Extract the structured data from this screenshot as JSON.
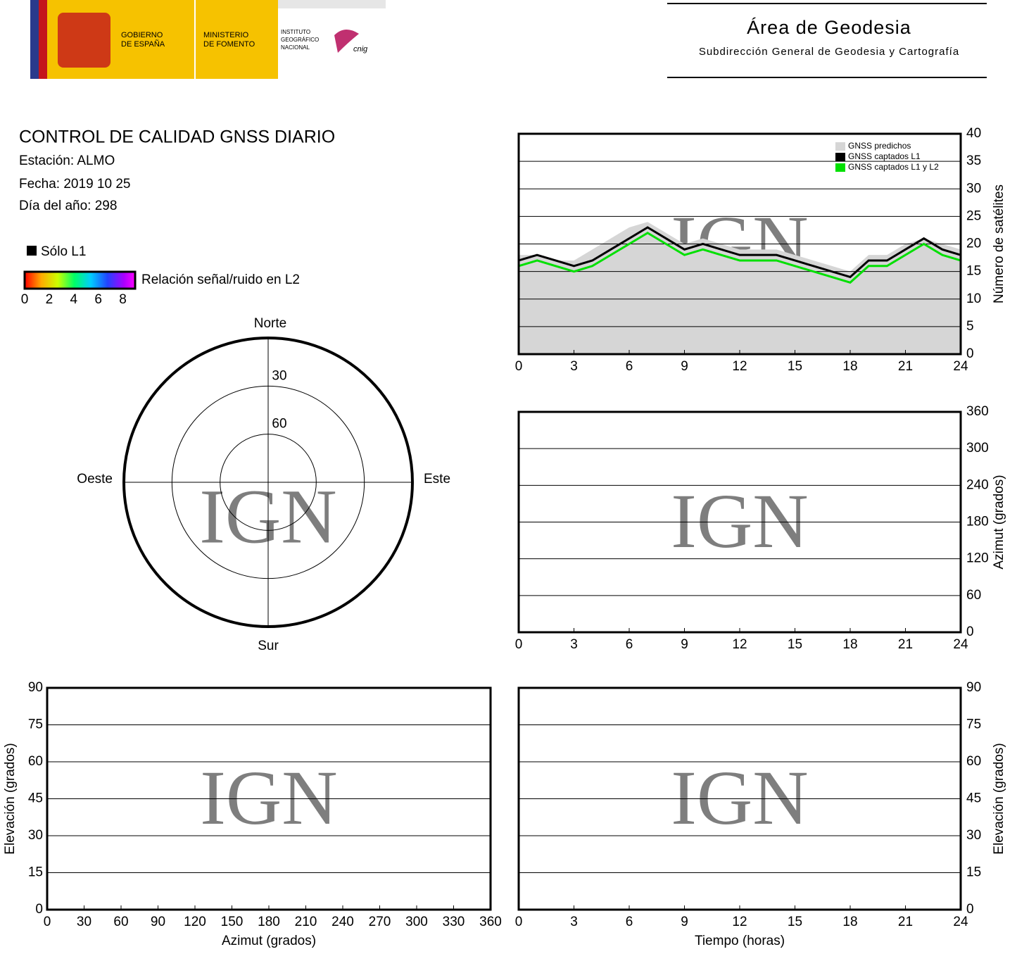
{
  "header": {
    "gov": [
      "GOBIERNO",
      "DE ESPAÑA"
    ],
    "ministry": [
      "MINISTERIO",
      "DE FOMENTO"
    ],
    "institute": [
      "INSTITUTO",
      "GEOGRÁFICO",
      "NACIONAL"
    ],
    "cnig": "cnig",
    "area": "Área de Geodesia",
    "subdirection": "Subdirección General de Geodesia y Cartografía"
  },
  "info": {
    "title": "CONTROL DE CALIDAD GNSS DIARIO",
    "station": "Estación: ALMO",
    "date": "Fecha: 2019 10 25",
    "doy": "Día del año: 298",
    "l1_only": "Sólo L1",
    "colorbar_label": "Relación señal/ruido en L2",
    "colorbar_ticks": [
      0,
      2,
      4,
      6,
      8
    ]
  },
  "watermark": "IGN",
  "chart_data": [
    {
      "type": "polar",
      "directions": {
        "north": "Norte",
        "south": "Sur",
        "east": "Este",
        "west": "Oeste"
      },
      "rlim": [
        90,
        0
      ],
      "rticks": [
        30,
        60
      ]
    },
    {
      "type": "line",
      "ylabel": "Número de satélites",
      "x": [
        0,
        1,
        2,
        3,
        4,
        5,
        6,
        7,
        8,
        9,
        10,
        11,
        12,
        13,
        14,
        15,
        16,
        17,
        18,
        19,
        20,
        21,
        22,
        23,
        24
      ],
      "xlim": [
        0,
        24
      ],
      "xticks": [
        0,
        3,
        6,
        9,
        12,
        15,
        18,
        21,
        24
      ],
      "ylim": [
        0,
        40
      ],
      "yticks": [
        0,
        5,
        10,
        15,
        20,
        25,
        30,
        35,
        40
      ],
      "grid": true,
      "legend": "upper right",
      "series": [
        {
          "name": "GNSS predichos",
          "color": "#d6d6d6",
          "values": [
            18,
            18,
            17,
            17,
            19,
            21,
            23,
            24,
            22,
            20,
            21,
            20,
            19,
            19,
            19,
            18,
            17,
            16,
            15,
            18,
            18,
            20,
            21,
            20,
            19
          ]
        },
        {
          "name": "GNSS captados L1",
          "color": "#000000",
          "values": [
            17,
            18,
            17,
            16,
            17,
            19,
            21,
            23,
            21,
            19,
            20,
            19,
            18,
            18,
            18,
            17,
            16,
            15,
            14,
            17,
            17,
            19,
            21,
            19,
            18
          ]
        },
        {
          "name": "GNSS captados L1 y L2",
          "color": "#00e000",
          "values": [
            16,
            17,
            16,
            15,
            16,
            18,
            20,
            22,
            20,
            18,
            19,
            18,
            17,
            17,
            17,
            16,
            15,
            14,
            13,
            16,
            16,
            18,
            20,
            18,
            17
          ]
        }
      ]
    },
    {
      "type": "line",
      "ylabel": "Azimut (grados)",
      "xlim": [
        0,
        24
      ],
      "xticks": [
        0,
        3,
        6,
        9,
        12,
        15,
        18,
        21,
        24
      ],
      "ylim": [
        0,
        360
      ],
      "yticks": [
        0,
        60,
        120,
        180,
        240,
        300,
        360
      ],
      "grid": true
    },
    {
      "type": "line",
      "xlabel": "Azimut (grados)",
      "ylabel": "Elevación (grados)",
      "xlim": [
        0,
        360
      ],
      "xticks": [
        0,
        30,
        60,
        90,
        120,
        150,
        180,
        210,
        240,
        270,
        300,
        330,
        360
      ],
      "ylim": [
        0,
        90
      ],
      "yticks": [
        0,
        15,
        30,
        45,
        60,
        75,
        90
      ],
      "grid": true
    },
    {
      "type": "line",
      "xlabel": "Tiempo (horas)",
      "ylabel": "Elevación (grados)",
      "xlim": [
        0,
        24
      ],
      "xticks": [
        0,
        3,
        6,
        9,
        12,
        15,
        18,
        21,
        24
      ],
      "ylim": [
        0,
        90
      ],
      "yticks": [
        0,
        15,
        30,
        45,
        60,
        75,
        90
      ],
      "grid": true
    }
  ]
}
